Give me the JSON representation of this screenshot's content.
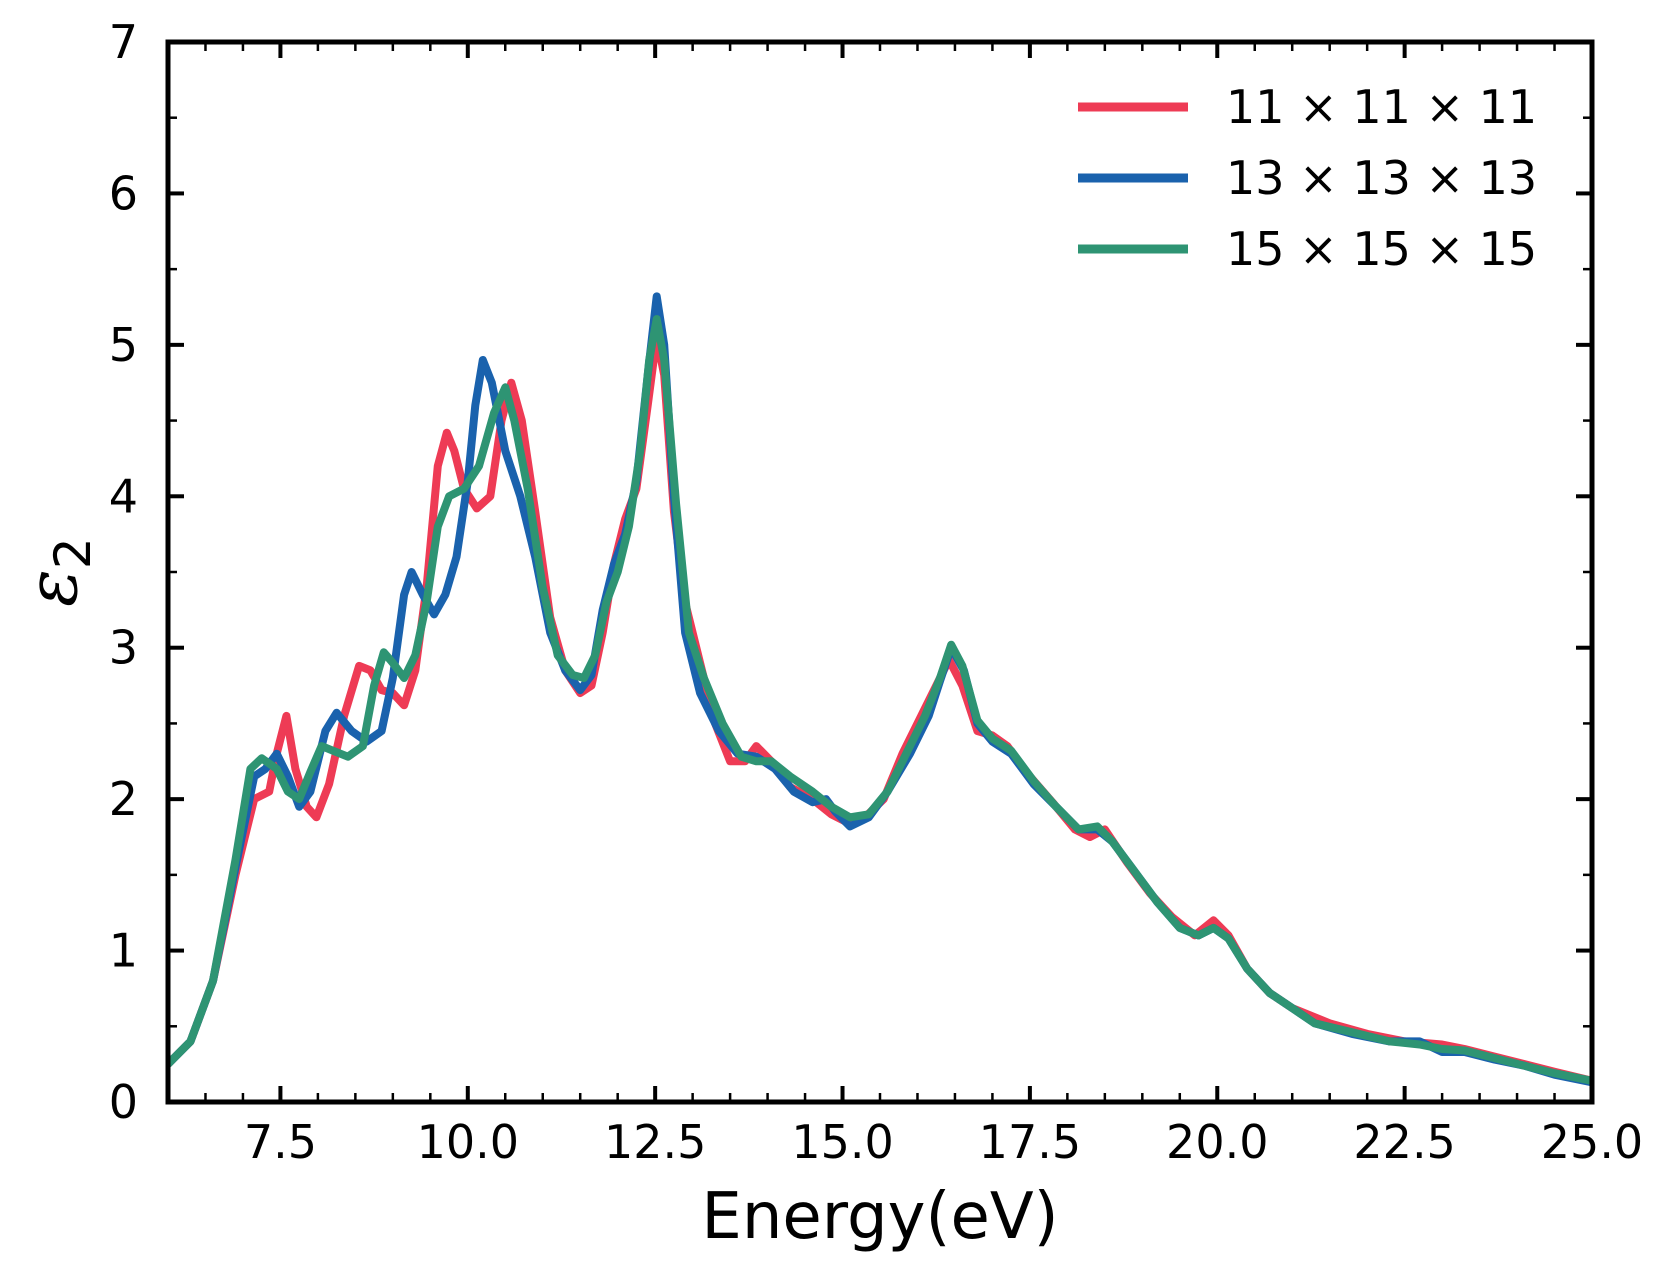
{
  "chart_data": {
    "type": "line",
    "title": "",
    "xlabel": "Energy(eV)",
    "ylabel": "ε2",
    "ylabel_main": "ε",
    "ylabel_sub": "2",
    "xlim": [
      6.0,
      25.0
    ],
    "ylim": [
      0,
      7
    ],
    "xticks": [
      7.5,
      10.0,
      12.5,
      15.0,
      17.5,
      20.0,
      22.5,
      25.0
    ],
    "xtick_labels": [
      "7.5",
      "10.0",
      "12.5",
      "15.0",
      "17.5",
      "20.0",
      "22.5",
      "25.0"
    ],
    "x_minor_step": 0.5,
    "yticks": [
      0,
      1,
      2,
      3,
      4,
      5,
      6,
      7
    ],
    "ytick_labels": [
      "0",
      "1",
      "2",
      "3",
      "4",
      "5",
      "6",
      "7"
    ],
    "y_minor_step": 0.5,
    "grid": false,
    "legend_position": "top-right",
    "series": [
      {
        "name": "11 × 11 × 11",
        "color": "#ee3b55",
        "points": [
          [
            6.0,
            0.25
          ],
          [
            6.3,
            0.4
          ],
          [
            6.6,
            0.8
          ],
          [
            6.9,
            1.5
          ],
          [
            7.15,
            2.0
          ],
          [
            7.35,
            2.05
          ],
          [
            7.45,
            2.3
          ],
          [
            7.58,
            2.55
          ],
          [
            7.7,
            2.2
          ],
          [
            7.85,
            1.95
          ],
          [
            7.98,
            1.88
          ],
          [
            8.15,
            2.1
          ],
          [
            8.35,
            2.55
          ],
          [
            8.55,
            2.88
          ],
          [
            8.7,
            2.85
          ],
          [
            8.85,
            2.72
          ],
          [
            9.0,
            2.7
          ],
          [
            9.15,
            2.62
          ],
          [
            9.3,
            2.85
          ],
          [
            9.45,
            3.4
          ],
          [
            9.6,
            4.2
          ],
          [
            9.72,
            4.42
          ],
          [
            9.82,
            4.3
          ],
          [
            9.95,
            4.05
          ],
          [
            10.12,
            3.92
          ],
          [
            10.3,
            4.0
          ],
          [
            10.45,
            4.5
          ],
          [
            10.58,
            4.75
          ],
          [
            10.72,
            4.5
          ],
          [
            10.9,
            3.9
          ],
          [
            11.1,
            3.2
          ],
          [
            11.3,
            2.85
          ],
          [
            11.5,
            2.7
          ],
          [
            11.65,
            2.75
          ],
          [
            11.8,
            3.1
          ],
          [
            11.95,
            3.55
          ],
          [
            12.1,
            3.85
          ],
          [
            12.25,
            4.05
          ],
          [
            12.4,
            4.6
          ],
          [
            12.52,
            5.05
          ],
          [
            12.62,
            4.8
          ],
          [
            12.75,
            3.9
          ],
          [
            12.9,
            3.3
          ],
          [
            13.1,
            2.9
          ],
          [
            13.3,
            2.5
          ],
          [
            13.5,
            2.25
          ],
          [
            13.7,
            2.25
          ],
          [
            13.85,
            2.35
          ],
          [
            14.05,
            2.25
          ],
          [
            14.3,
            2.08
          ],
          [
            14.6,
            2.0
          ],
          [
            14.85,
            1.9
          ],
          [
            15.05,
            1.85
          ],
          [
            15.3,
            1.88
          ],
          [
            15.55,
            2.0
          ],
          [
            15.8,
            2.3
          ],
          [
            16.05,
            2.55
          ],
          [
            16.25,
            2.75
          ],
          [
            16.42,
            2.92
          ],
          [
            16.6,
            2.75
          ],
          [
            16.8,
            2.45
          ],
          [
            17.0,
            2.42
          ],
          [
            17.2,
            2.35
          ],
          [
            17.5,
            2.15
          ],
          [
            17.8,
            1.98
          ],
          [
            18.1,
            1.8
          ],
          [
            18.3,
            1.75
          ],
          [
            18.5,
            1.8
          ],
          [
            18.8,
            1.58
          ],
          [
            19.1,
            1.38
          ],
          [
            19.4,
            1.22
          ],
          [
            19.7,
            1.1
          ],
          [
            19.95,
            1.2
          ],
          [
            20.15,
            1.1
          ],
          [
            20.4,
            0.88
          ],
          [
            20.7,
            0.72
          ],
          [
            21.0,
            0.62
          ],
          [
            21.5,
            0.52
          ],
          [
            22.0,
            0.45
          ],
          [
            22.5,
            0.4
          ],
          [
            23.0,
            0.38
          ],
          [
            23.3,
            0.35
          ],
          [
            23.7,
            0.3
          ],
          [
            24.1,
            0.25
          ],
          [
            24.5,
            0.2
          ],
          [
            25.0,
            0.14
          ]
        ]
      },
      {
        "name": "13 × 13 × 13",
        "color": "#1a62ad",
        "points": [
          [
            6.0,
            0.25
          ],
          [
            6.3,
            0.4
          ],
          [
            6.6,
            0.8
          ],
          [
            6.9,
            1.55
          ],
          [
            7.15,
            2.15
          ],
          [
            7.3,
            2.2
          ],
          [
            7.45,
            2.3
          ],
          [
            7.6,
            2.15
          ],
          [
            7.75,
            1.95
          ],
          [
            7.9,
            2.05
          ],
          [
            8.1,
            2.45
          ],
          [
            8.25,
            2.57
          ],
          [
            8.45,
            2.45
          ],
          [
            8.65,
            2.38
          ],
          [
            8.85,
            2.45
          ],
          [
            9.0,
            2.8
          ],
          [
            9.15,
            3.35
          ],
          [
            9.25,
            3.5
          ],
          [
            9.4,
            3.35
          ],
          [
            9.55,
            3.22
          ],
          [
            9.7,
            3.35
          ],
          [
            9.85,
            3.6
          ],
          [
            10.0,
            4.1
          ],
          [
            10.1,
            4.6
          ],
          [
            10.2,
            4.9
          ],
          [
            10.32,
            4.75
          ],
          [
            10.5,
            4.3
          ],
          [
            10.7,
            4.0
          ],
          [
            10.9,
            3.6
          ],
          [
            11.1,
            3.1
          ],
          [
            11.3,
            2.85
          ],
          [
            11.5,
            2.72
          ],
          [
            11.65,
            2.82
          ],
          [
            11.8,
            3.25
          ],
          [
            11.95,
            3.55
          ],
          [
            12.1,
            3.75
          ],
          [
            12.25,
            4.1
          ],
          [
            12.4,
            4.8
          ],
          [
            12.52,
            5.32
          ],
          [
            12.62,
            5.0
          ],
          [
            12.75,
            4.0
          ],
          [
            12.9,
            3.1
          ],
          [
            13.1,
            2.7
          ],
          [
            13.35,
            2.45
          ],
          [
            13.6,
            2.3
          ],
          [
            13.85,
            2.28
          ],
          [
            14.1,
            2.2
          ],
          [
            14.35,
            2.05
          ],
          [
            14.6,
            1.98
          ],
          [
            14.78,
            2.0
          ],
          [
            14.9,
            1.92
          ],
          [
            15.1,
            1.82
          ],
          [
            15.35,
            1.88
          ],
          [
            15.6,
            2.05
          ],
          [
            15.9,
            2.3
          ],
          [
            16.15,
            2.55
          ],
          [
            16.3,
            2.78
          ],
          [
            16.45,
            3.0
          ],
          [
            16.62,
            2.85
          ],
          [
            16.8,
            2.5
          ],
          [
            17.0,
            2.38
          ],
          [
            17.25,
            2.3
          ],
          [
            17.55,
            2.1
          ],
          [
            17.85,
            1.95
          ],
          [
            18.15,
            1.8
          ],
          [
            18.4,
            1.8
          ],
          [
            18.6,
            1.72
          ],
          [
            18.9,
            1.52
          ],
          [
            19.2,
            1.32
          ],
          [
            19.5,
            1.15
          ],
          [
            19.75,
            1.1
          ],
          [
            19.95,
            1.15
          ],
          [
            20.15,
            1.08
          ],
          [
            20.4,
            0.88
          ],
          [
            20.7,
            0.72
          ],
          [
            21.0,
            0.62
          ],
          [
            21.3,
            0.52
          ],
          [
            21.8,
            0.45
          ],
          [
            22.3,
            0.4
          ],
          [
            22.7,
            0.4
          ],
          [
            23.0,
            0.33
          ],
          [
            23.3,
            0.33
          ],
          [
            23.7,
            0.28
          ],
          [
            24.1,
            0.24
          ],
          [
            24.5,
            0.18
          ],
          [
            25.0,
            0.13
          ]
        ]
      },
      {
        "name": "15 × 15 × 15",
        "color": "#2e9473",
        "points": [
          [
            6.0,
            0.25
          ],
          [
            6.3,
            0.4
          ],
          [
            6.6,
            0.8
          ],
          [
            6.9,
            1.6
          ],
          [
            7.1,
            2.2
          ],
          [
            7.25,
            2.27
          ],
          [
            7.45,
            2.2
          ],
          [
            7.6,
            2.05
          ],
          [
            7.75,
            2.0
          ],
          [
            7.9,
            2.18
          ],
          [
            8.05,
            2.35
          ],
          [
            8.2,
            2.32
          ],
          [
            8.4,
            2.28
          ],
          [
            8.6,
            2.35
          ],
          [
            8.75,
            2.75
          ],
          [
            8.88,
            2.97
          ],
          [
            9.0,
            2.9
          ],
          [
            9.15,
            2.8
          ],
          [
            9.3,
            2.95
          ],
          [
            9.45,
            3.3
          ],
          [
            9.6,
            3.8
          ],
          [
            9.75,
            4.0
          ],
          [
            9.95,
            4.05
          ],
          [
            10.15,
            4.2
          ],
          [
            10.35,
            4.55
          ],
          [
            10.5,
            4.72
          ],
          [
            10.62,
            4.5
          ],
          [
            10.8,
            4.05
          ],
          [
            11.0,
            3.4
          ],
          [
            11.2,
            2.95
          ],
          [
            11.4,
            2.82
          ],
          [
            11.55,
            2.8
          ],
          [
            11.7,
            2.95
          ],
          [
            11.85,
            3.3
          ],
          [
            12.0,
            3.5
          ],
          [
            12.15,
            3.8
          ],
          [
            12.3,
            4.3
          ],
          [
            12.42,
            4.9
          ],
          [
            12.52,
            5.17
          ],
          [
            12.62,
            4.9
          ],
          [
            12.78,
            3.95
          ],
          [
            12.95,
            3.1
          ],
          [
            13.15,
            2.8
          ],
          [
            13.4,
            2.5
          ],
          [
            13.65,
            2.28
          ],
          [
            13.85,
            2.25
          ],
          [
            14.05,
            2.25
          ],
          [
            14.3,
            2.15
          ],
          [
            14.6,
            2.05
          ],
          [
            14.85,
            1.95
          ],
          [
            15.1,
            1.88
          ],
          [
            15.35,
            1.9
          ],
          [
            15.6,
            2.05
          ],
          [
            15.85,
            2.3
          ],
          [
            16.1,
            2.55
          ],
          [
            16.3,
            2.8
          ],
          [
            16.45,
            3.02
          ],
          [
            16.6,
            2.88
          ],
          [
            16.8,
            2.52
          ],
          [
            17.0,
            2.4
          ],
          [
            17.25,
            2.32
          ],
          [
            17.55,
            2.12
          ],
          [
            17.85,
            1.95
          ],
          [
            18.15,
            1.8
          ],
          [
            18.4,
            1.82
          ],
          [
            18.6,
            1.72
          ],
          [
            18.9,
            1.52
          ],
          [
            19.2,
            1.32
          ],
          [
            19.5,
            1.15
          ],
          [
            19.75,
            1.1
          ],
          [
            19.95,
            1.15
          ],
          [
            20.15,
            1.08
          ],
          [
            20.4,
            0.88
          ],
          [
            20.7,
            0.72
          ],
          [
            21.0,
            0.62
          ],
          [
            21.3,
            0.52
          ],
          [
            21.8,
            0.46
          ],
          [
            22.3,
            0.4
          ],
          [
            22.7,
            0.38
          ],
          [
            23.0,
            0.35
          ],
          [
            23.3,
            0.34
          ],
          [
            23.7,
            0.29
          ],
          [
            24.1,
            0.24
          ],
          [
            24.5,
            0.19
          ],
          [
            25.0,
            0.14
          ]
        ]
      }
    ]
  }
}
